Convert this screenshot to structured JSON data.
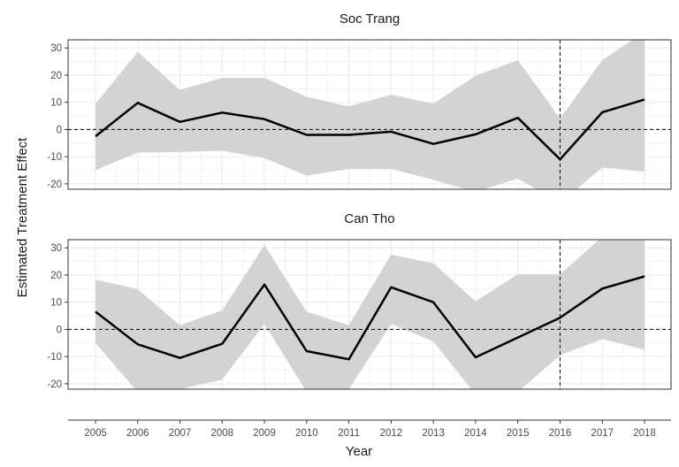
{
  "chart_data": {
    "type": "line",
    "x": [
      2005,
      2006,
      2007,
      2008,
      2009,
      2010,
      2011,
      2012,
      2013,
      2014,
      2015,
      2016,
      2017,
      2018
    ],
    "x_ticks": [
      "2005",
      "2006",
      "2007",
      "2008",
      "2009",
      "2010",
      "2011",
      "2012",
      "2013",
      "2014",
      "2015",
      "2016",
      "2017",
      "2018"
    ],
    "xlabel": "Year",
    "ylabel": "Estimated Treatment Effect",
    "ylim": [
      -22,
      33
    ],
    "y_ticks": [
      -20,
      -10,
      0,
      10,
      20,
      30
    ],
    "y_tick_labels": [
      "-20",
      "-10",
      "0",
      "10",
      "20",
      "30"
    ],
    "reference_line_y": 0,
    "reference_line_x": 2016,
    "grid": true,
    "colors": {
      "line": "#000000",
      "band": "#d3d3d3",
      "grid": "#ebebeb"
    },
    "panels": [
      {
        "title": "Soc Trang",
        "estimate": [
          -2.5,
          9.8,
          2.8,
          6.2,
          3.8,
          -2,
          -2,
          -0.8,
          -5.3,
          -1.8,
          4.3,
          -11,
          6.3,
          11
        ],
        "lower": [
          -15,
          -8.5,
          -8.3,
          -7.8,
          -10.5,
          -17,
          -14.5,
          -14.5,
          -18.5,
          -23,
          -18,
          -27,
          -14,
          -15.5
        ],
        "upper": [
          9.5,
          28.5,
          14.5,
          19,
          19,
          12,
          8.5,
          12.8,
          9.5,
          19.8,
          25.5,
          4,
          25.5,
          36
        ]
      },
      {
        "title": "Can Tho",
        "estimate": [
          6.5,
          -5.5,
          -10.5,
          -5.3,
          16.5,
          -8,
          -11,
          15.5,
          10,
          -10.3,
          -3,
          4.3,
          15,
          19.5
        ],
        "lower": [
          -5,
          -23,
          -22,
          -18.5,
          2,
          -23,
          -22,
          2,
          -4.5,
          -24,
          -23,
          -9.5,
          -3.5,
          -7.5
        ],
        "upper": [
          18.3,
          14.8,
          1.5,
          7,
          31,
          6.5,
          1.5,
          27.5,
          24.3,
          10.3,
          20.3,
          20.3,
          34,
          35
        ]
      }
    ]
  }
}
